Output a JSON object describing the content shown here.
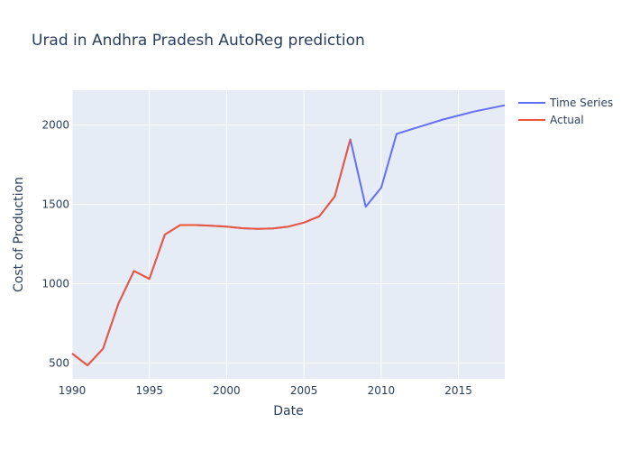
{
  "chart_data": {
    "type": "line",
    "title": "Urad in Andhra Pradesh AutoReg prediction",
    "xlabel": "Date",
    "ylabel": "Cost of Production",
    "xlim": [
      1990,
      2018
    ],
    "ylim": [
      400,
      2220
    ],
    "x_ticks": [
      1990,
      1995,
      2000,
      2005,
      2010,
      2015
    ],
    "y_ticks": [
      500,
      1000,
      1500,
      2000
    ],
    "grid": true,
    "legend_position": "top-right",
    "colors": {
      "plot_bg": "#e5ecf6",
      "grid": "#ffffff",
      "text": "#2a3f5f"
    },
    "series": [
      {
        "name": "Time Series",
        "color": "#636efa",
        "x": [
          1990,
          1991,
          1992,
          1993,
          1994,
          1995,
          1996,
          1997,
          1998,
          1999,
          2000,
          2001,
          2002,
          2003,
          2004,
          2005,
          2006,
          2007,
          2008,
          2009,
          2010,
          2011,
          2012,
          2013,
          2014,
          2015,
          2016,
          2017,
          2018
        ],
        "values": [
          560,
          485,
          590,
          875,
          1080,
          1030,
          1310,
          1370,
          1370,
          1365,
          1360,
          1350,
          1345,
          1348,
          1360,
          1385,
          1425,
          1550,
          1910,
          1485,
          1605,
          1945,
          1975,
          2005,
          2035,
          2060,
          2085,
          2105,
          2125
        ]
      },
      {
        "name": "Actual",
        "color": "#ef553b",
        "x": [
          1990,
          1991,
          1992,
          1993,
          1994,
          1995,
          1996,
          1997,
          1998,
          1999,
          2000,
          2001,
          2002,
          2003,
          2004,
          2005,
          2006,
          2007,
          2008
        ],
        "values": [
          560,
          485,
          590,
          875,
          1080,
          1030,
          1310,
          1370,
          1370,
          1365,
          1360,
          1350,
          1345,
          1348,
          1360,
          1385,
          1425,
          1550,
          1910
        ]
      }
    ]
  }
}
